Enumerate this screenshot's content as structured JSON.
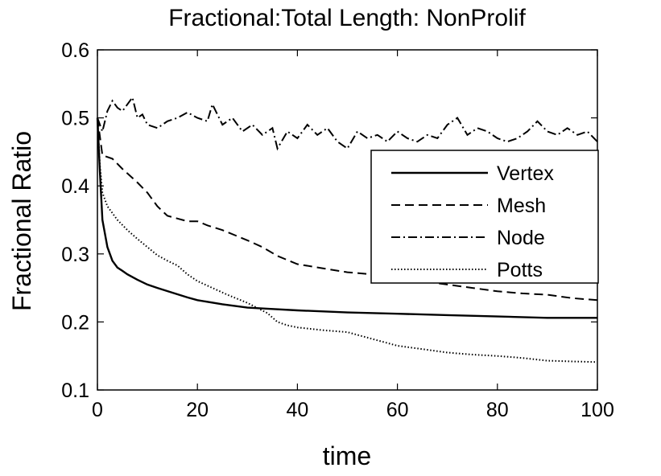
{
  "chart_data": {
    "type": "line",
    "title": "Fractional:Total Length: NonProlif",
    "xlabel": "time",
    "ylabel": "Fractional Ratio",
    "xlim": [
      0,
      100
    ],
    "ylim": [
      0.1,
      0.6
    ],
    "xticks": [
      0,
      20,
      40,
      60,
      80,
      100
    ],
    "yticks": [
      0.1,
      0.2,
      0.3,
      0.4,
      0.5,
      0.6
    ],
    "grid": false,
    "legend_position": "right",
    "series": [
      {
        "name": "Vertex",
        "style": "solid",
        "x": [
          0,
          0.5,
          1,
          2,
          3,
          4,
          5,
          6,
          8,
          10,
          12,
          15,
          18,
          20,
          25,
          30,
          35,
          40,
          50,
          60,
          70,
          80,
          90,
          100
        ],
        "y": [
          0.5,
          0.42,
          0.35,
          0.31,
          0.29,
          0.28,
          0.275,
          0.27,
          0.262,
          0.255,
          0.25,
          0.243,
          0.236,
          0.232,
          0.226,
          0.221,
          0.219,
          0.217,
          0.214,
          0.212,
          0.21,
          0.208,
          0.206,
          0.206
        ]
      },
      {
        "name": "Mesh",
        "style": "dashed",
        "x": [
          0,
          1,
          3,
          5,
          8,
          10,
          12,
          14,
          16,
          18,
          20,
          22,
          25,
          28,
          30,
          33,
          36,
          40,
          45,
          50,
          55,
          60,
          65,
          70,
          75,
          80,
          85,
          90,
          95,
          100
        ],
        "y": [
          0.5,
          0.445,
          0.44,
          0.425,
          0.405,
          0.39,
          0.37,
          0.356,
          0.352,
          0.348,
          0.348,
          0.342,
          0.335,
          0.326,
          0.32,
          0.31,
          0.297,
          0.285,
          0.279,
          0.273,
          0.27,
          0.265,
          0.26,
          0.255,
          0.25,
          0.245,
          0.242,
          0.24,
          0.235,
          0.232
        ]
      },
      {
        "name": "Node",
        "style": "dashdot",
        "x": [
          0,
          1,
          2,
          3,
          4,
          5,
          6,
          7,
          8,
          9,
          10,
          12,
          14,
          16,
          18,
          20,
          22,
          23,
          25,
          27,
          29,
          31,
          33,
          35,
          36,
          38,
          40,
          42,
          44,
          46,
          48,
          50,
          52,
          54,
          56,
          58,
          60,
          62,
          64,
          66,
          68,
          70,
          72,
          74,
          76,
          78,
          80,
          82,
          84,
          86,
          88,
          90,
          92,
          94,
          96,
          98,
          100
        ],
        "y": [
          0.5,
          0.48,
          0.51,
          0.525,
          0.515,
          0.51,
          0.52,
          0.53,
          0.5,
          0.505,
          0.49,
          0.485,
          0.495,
          0.5,
          0.508,
          0.5,
          0.495,
          0.52,
          0.49,
          0.5,
          0.48,
          0.49,
          0.475,
          0.485,
          0.455,
          0.48,
          0.47,
          0.49,
          0.475,
          0.485,
          0.465,
          0.455,
          0.48,
          0.47,
          0.475,
          0.465,
          0.48,
          0.47,
          0.465,
          0.475,
          0.47,
          0.49,
          0.5,
          0.475,
          0.485,
          0.48,
          0.47,
          0.465,
          0.47,
          0.48,
          0.495,
          0.48,
          0.475,
          0.485,
          0.475,
          0.48,
          0.465
        ]
      },
      {
        "name": "Potts",
        "style": "dotted",
        "x": [
          0,
          0.5,
          1,
          2,
          3,
          4,
          6,
          8,
          10,
          12,
          14,
          16,
          18,
          20,
          23,
          26,
          30,
          34,
          36,
          38,
          40,
          45,
          50,
          55,
          60,
          65,
          70,
          75,
          80,
          85,
          90,
          95,
          100
        ],
        "y": [
          0.5,
          0.43,
          0.39,
          0.37,
          0.36,
          0.35,
          0.335,
          0.322,
          0.31,
          0.298,
          0.29,
          0.283,
          0.27,
          0.26,
          0.25,
          0.24,
          0.228,
          0.213,
          0.2,
          0.195,
          0.192,
          0.188,
          0.185,
          0.175,
          0.165,
          0.16,
          0.155,
          0.152,
          0.15,
          0.147,
          0.143,
          0.142,
          0.141
        ]
      }
    ]
  }
}
